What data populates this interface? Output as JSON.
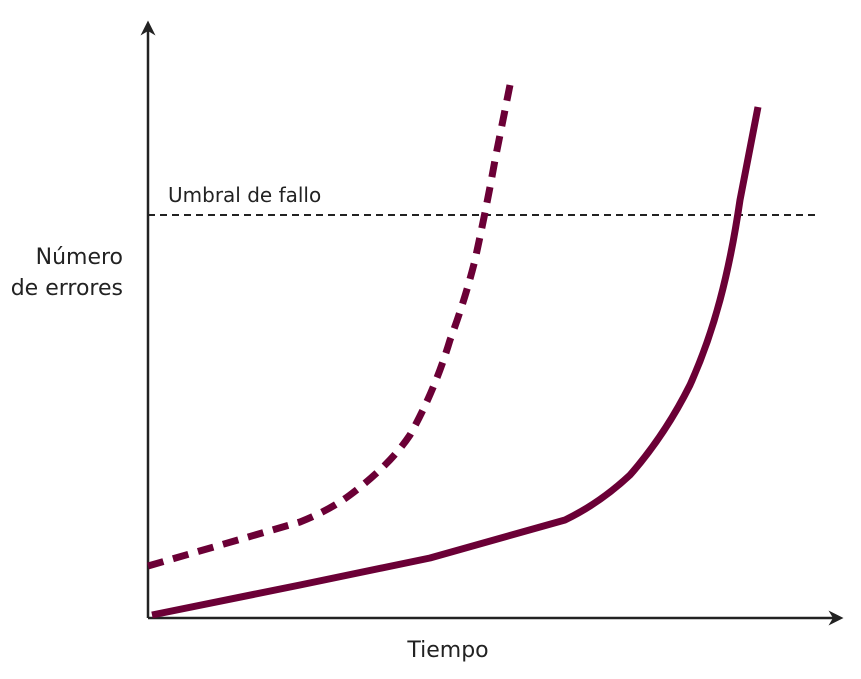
{
  "threshold_label": "Umbral de fallo",
  "y_axis_label": [
    "Número",
    "de errores"
  ],
  "x_axis_label": "Tiempo"
}
